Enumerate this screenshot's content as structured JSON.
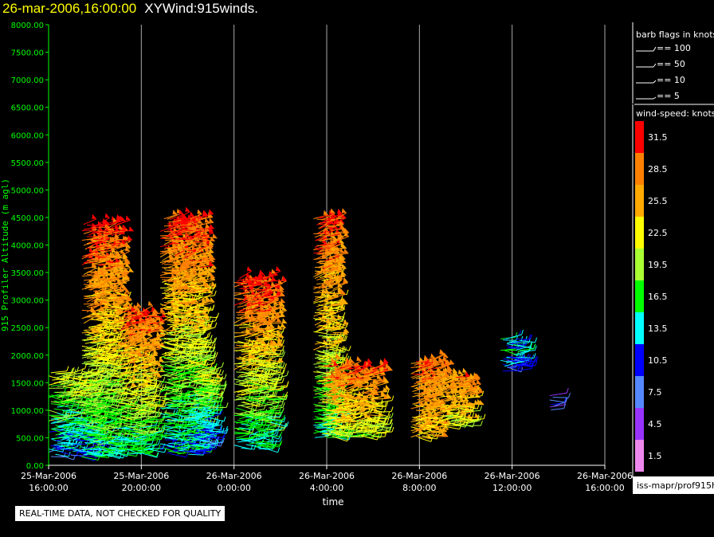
{
  "title": {
    "timestamp": "26-mar-2006,16:00:00",
    "name": "XYWind:915winds."
  },
  "colors": {
    "axis_y": "#00ff00",
    "axis_x": "#ffffff",
    "gridline": "#aaaaaa",
    "background": "#000000"
  },
  "legend": {
    "barb_title": "barb flags in knots",
    "barbs": [
      {
        "label": "== 100"
      },
      {
        "label": "== 50"
      },
      {
        "label": "== 10"
      },
      {
        "label": "== 5"
      }
    ],
    "speed_title": "wind-speed: knots",
    "scale": [
      {
        "label": "31.5",
        "color": "#ff0000"
      },
      {
        "label": "28.5",
        "color": "#ff8000"
      },
      {
        "label": "25.5",
        "color": "#ffaa00"
      },
      {
        "label": "22.5",
        "color": "#ffff00"
      },
      {
        "label": "19.5",
        "color": "#aaff33"
      },
      {
        "label": "16.5",
        "color": "#00ff00"
      },
      {
        "label": "13.5",
        "color": "#00ffff"
      },
      {
        "label": "10.5",
        "color": "#0000ff"
      },
      {
        "label": "7.5",
        "color": "#5588ff"
      },
      {
        "label": "4.5",
        "color": "#9933ff"
      },
      {
        "label": "1.5",
        "color": "#ee88ee"
      }
    ],
    "footer": "iss-mapr/prof915h"
  },
  "qc_note": "REAL-TIME DATA, NOT CHECKED FOR QUALITY",
  "chart_data": {
    "type": "scatter",
    "title": "26-mar-2006,16:00:00  XYWind:915winds.",
    "xlabel": "time",
    "ylabel": "915 Profiler Altitude (m agl)",
    "xlim": [
      "25-Mar-2006 16:00:00",
      "26-Mar-2006 16:00:00"
    ],
    "ylim": [
      0,
      8000
    ],
    "x_ticks": [
      {
        "date": "25-Mar-2006",
        "time": "16:00:00",
        "hour": 0
      },
      {
        "date": "25-Mar-2006",
        "time": "20:00:00",
        "hour": 4
      },
      {
        "date": "26-Mar-2006",
        "time": "0:00:00",
        "hour": 8
      },
      {
        "date": "26-Mar-2006",
        "time": "4:00:00",
        "hour": 12
      },
      {
        "date": "26-Mar-2006",
        "time": "8:00:00",
        "hour": 16
      },
      {
        "date": "26-Mar-2006",
        "time": "12:00:00",
        "hour": 20
      },
      {
        "date": "26-Mar-2006",
        "time": "16:00:00",
        "hour": 24
      }
    ],
    "y_ticks": [
      "0.00",
      "500.00",
      "1000.00",
      "1500.00",
      "2000.00",
      "2500.00",
      "3000.00",
      "3500.00",
      "4000.00",
      "4500.00",
      "5000.00",
      "5500.00",
      "6000.00",
      "6500.00",
      "7000.00",
      "7500.00",
      "8000.00"
    ],
    "grid": "vertical",
    "legend_position": "right",
    "clusters": [
      {
        "hour_start": 0.0,
        "hour_end": 1.8,
        "alt_min": 150,
        "alt_max": 1700,
        "speed_low": 6,
        "speed_high": 22
      },
      {
        "hour_start": 1.4,
        "hour_end": 3.0,
        "alt_min": 150,
        "alt_max": 4400,
        "speed_low": 8,
        "speed_high": 31
      },
      {
        "hour_start": 3.0,
        "hour_end": 4.4,
        "alt_min": 200,
        "alt_max": 2800,
        "speed_low": 8,
        "speed_high": 30
      },
      {
        "hour_start": 4.8,
        "hour_end": 6.6,
        "alt_min": 200,
        "alt_max": 4500,
        "speed_low": 5,
        "speed_high": 31
      },
      {
        "hour_start": 6.2,
        "hour_end": 7.0,
        "alt_min": 350,
        "alt_max": 1700,
        "speed_low": 5,
        "speed_high": 22
      },
      {
        "hour_start": 8.0,
        "hour_end": 9.6,
        "alt_min": 300,
        "alt_max": 3400,
        "speed_low": 7,
        "speed_high": 31
      },
      {
        "hour_start": 11.4,
        "hour_end": 12.3,
        "alt_min": 500,
        "alt_max": 4500,
        "speed_low": 8,
        "speed_high": 31
      },
      {
        "hour_start": 11.8,
        "hour_end": 14.2,
        "alt_min": 500,
        "alt_max": 1800,
        "speed_low": 15,
        "speed_high": 30
      },
      {
        "hour_start": 15.6,
        "hour_end": 16.8,
        "alt_min": 500,
        "alt_max": 1900,
        "speed_low": 22,
        "speed_high": 29
      },
      {
        "hour_start": 16.9,
        "hour_end": 18.1,
        "alt_min": 700,
        "alt_max": 1600,
        "speed_low": 18,
        "speed_high": 28
      },
      {
        "hour_start": 19.5,
        "hour_end": 20.4,
        "alt_min": 1700,
        "alt_max": 2300,
        "speed_low": 9,
        "speed_high": 14
      },
      {
        "hour_start": 21.6,
        "hour_end": 21.8,
        "alt_min": 1000,
        "alt_max": 1400,
        "speed_low": 7,
        "speed_high": 9
      }
    ]
  }
}
